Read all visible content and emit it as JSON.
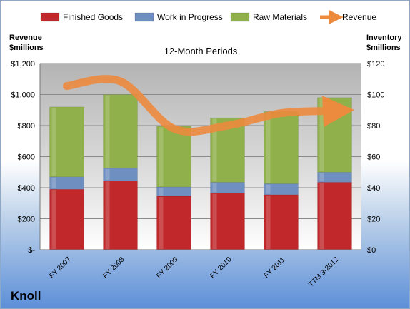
{
  "brand": "Knoll",
  "chart_data": {
    "type": "bar",
    "stacked": true,
    "title": "12-Month Periods",
    "categories": [
      "FY 2007",
      "FY 2008",
      "FY 2009",
      "FY 2010",
      "FY 2011",
      "TTM 3-2012"
    ],
    "y_left": {
      "label_line1": "Revenue",
      "label_line2": "$millions",
      "range": [
        0,
        1200
      ],
      "ticks": [
        "$-",
        "$200",
        "$400",
        "$600",
        "$800",
        "$1,000",
        "$1,200"
      ]
    },
    "y_right": {
      "label_line1": "Inventory",
      "label_line2": "$millions",
      "range": [
        0,
        120
      ],
      "ticks": [
        "$0",
        "$20",
        "$40",
        "$60",
        "$80",
        "$100",
        "$120"
      ]
    },
    "series": [
      {
        "name": "Finished Goods",
        "axis": "right",
        "color": "#c0282b",
        "values": [
          39,
          44.5,
          34.5,
          36.5,
          35.5,
          43.5
        ]
      },
      {
        "name": "Work in Progress",
        "axis": "right",
        "color": "#6f8fc0",
        "values": [
          8,
          8,
          6,
          7,
          7,
          6.5
        ]
      },
      {
        "name": "Raw Materials",
        "axis": "right",
        "color": "#8fb04a",
        "values": [
          45,
          47.5,
          39,
          41.5,
          46.5,
          48
        ]
      },
      {
        "name": "Revenue",
        "axis": "left",
        "type": "line",
        "color": "#ec8a3e",
        "values": [
          1055,
          1085,
          780,
          800,
          880,
          895
        ]
      }
    ],
    "grid": true,
    "legend_position": "top"
  }
}
